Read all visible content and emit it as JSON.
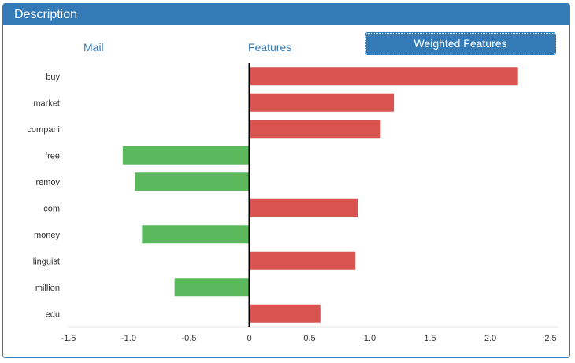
{
  "panel": {
    "title": "Description"
  },
  "tabs": [
    {
      "label": "Mail",
      "active": false
    },
    {
      "label": "Features",
      "active": false
    },
    {
      "label": "Weighted Features",
      "active": true
    }
  ],
  "colors": {
    "positive": "#d9534f",
    "negative": "#5cb85c",
    "accent": "#337ab7"
  },
  "chart_data": {
    "type": "bar",
    "orientation": "horizontal",
    "categories": [
      "buy",
      "market",
      "compani",
      "free",
      "remov",
      "com",
      "money",
      "linguist",
      "million",
      "edu"
    ],
    "values": [
      2.23,
      1.2,
      1.09,
      -1.05,
      -0.95,
      0.9,
      -0.89,
      0.88,
      -0.62,
      0.59
    ],
    "xlim": [
      -1.5,
      2.5
    ],
    "xticks": [
      "-1.5",
      "-1.0",
      "-0.5",
      "0",
      "0.5",
      "1.0",
      "1.5",
      "2.0",
      "2.5"
    ],
    "xtick_values": [
      -1.5,
      -1.0,
      -0.5,
      0,
      0.5,
      1.0,
      1.5,
      2.0,
      2.5
    ],
    "title": "",
    "xlabel": "",
    "ylabel": ""
  }
}
